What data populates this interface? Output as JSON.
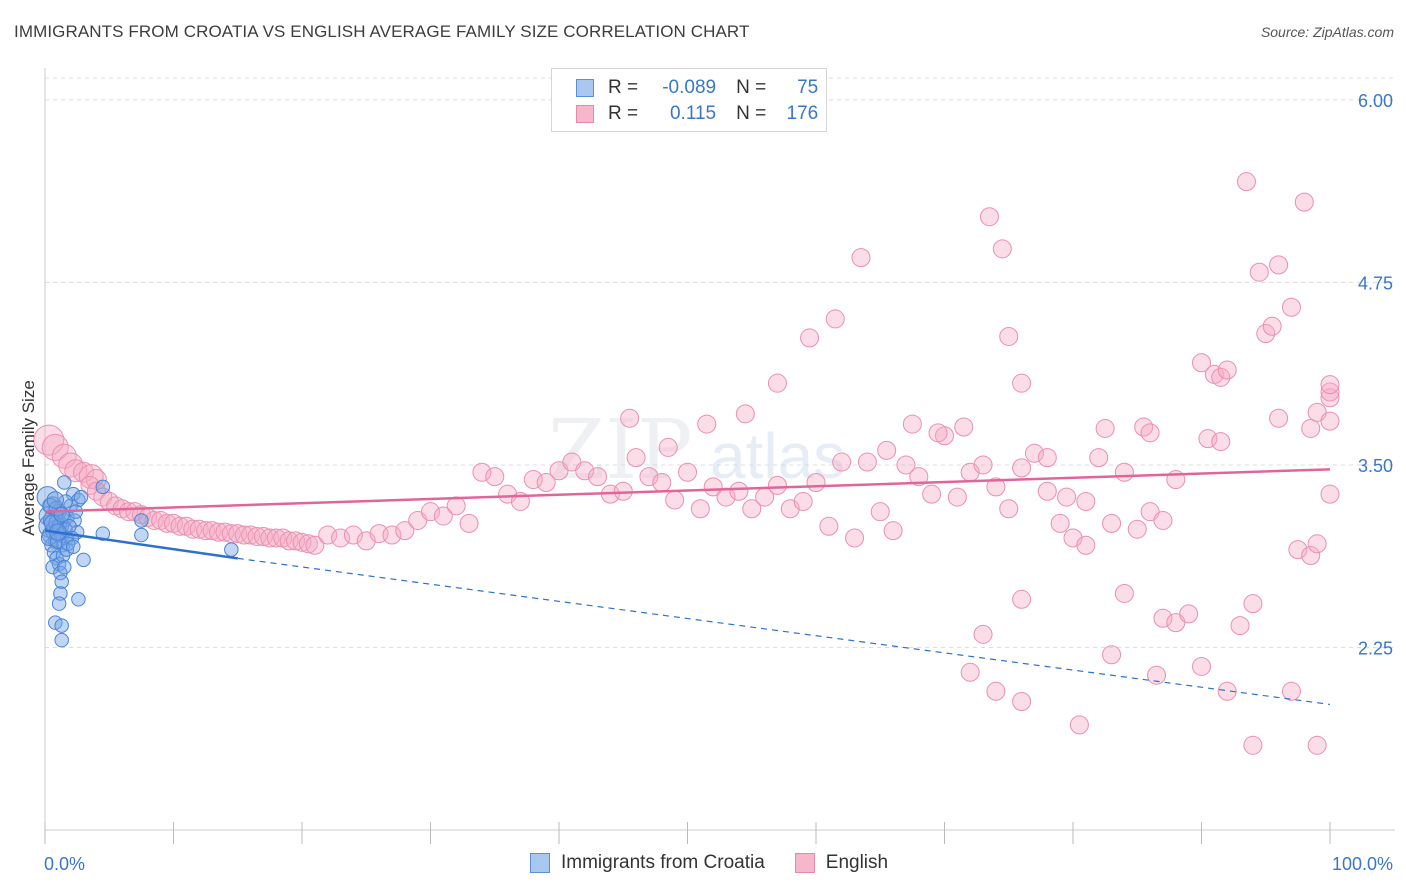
{
  "header": {
    "title": "IMMIGRANTS FROM CROATIA VS ENGLISH AVERAGE FAMILY SIZE CORRELATION CHART",
    "source": "Source: ZipAtlas.com"
  },
  "watermark": {
    "zip": "ZIP",
    "atlas": "atlas"
  },
  "legend": {
    "rows": [
      {
        "r_label": "R =",
        "r_value": "-0.089",
        "n_label": "N =",
        "n_value": "75",
        "color": "#a8c8f0",
        "border": "#5b8fd6"
      },
      {
        "r_label": "R =",
        "r_value": "0.115",
        "n_label": "N =",
        "n_value": "176",
        "color": "#f7b6cb",
        "border": "#e58aa8"
      }
    ]
  },
  "bottom_legend": {
    "items": [
      {
        "label": "Immigrants from Croatia",
        "color": "#a8c8f0",
        "border": "#5b8fd6"
      },
      {
        "label": "English",
        "color": "#f7b6cb",
        "border": "#e58aa8"
      }
    ]
  },
  "colors": {
    "blue_fill": "rgba(118,164,230,0.45)",
    "blue_stroke": "#4a83d4",
    "blue_line": "#2f6fd0",
    "pink_fill": "rgba(246,170,196,0.40)",
    "pink_stroke": "#ea8fb0",
    "pink_line": "#e0669a",
    "axis_label": "#3a76c9"
  },
  "chart_data": {
    "type": "scatter",
    "title": "IMMIGRANTS FROM CROATIA VS ENGLISH AVERAGE FAMILY SIZE CORRELATION CHART",
    "xlabel": "",
    "ylabel": "Average Family Size",
    "xlim": [
      0,
      100
    ],
    "ylim": [
      1.0,
      6.15
    ],
    "y_ticks": [
      2.25,
      3.5,
      4.75,
      6.0
    ],
    "y_tick_labels": [
      "2.25",
      "3.50",
      "4.75",
      "6.00"
    ],
    "x_tick_labels": [
      "0.0%",
      "100.0%"
    ],
    "grid": true,
    "legend_position": "top-center",
    "series": [
      {
        "name": "Immigrants from Croatia",
        "r": -0.089,
        "n": 75,
        "trend": {
          "x0": 0,
          "y0": 3.05,
          "x1": 15,
          "y1": 2.86,
          "x_dash_end": 100,
          "y_dash_end": 1.86
        },
        "points": [
          [
            0.2,
            3.28,
            14
          ],
          [
            0.3,
            3.15,
            13
          ],
          [
            0.4,
            3.08,
            15
          ],
          [
            0.5,
            3.02,
            12
          ],
          [
            0.6,
            3.22,
            12
          ],
          [
            0.7,
            3.12,
            14
          ],
          [
            0.8,
            3.05,
            13
          ],
          [
            0.9,
            2.98,
            11
          ],
          [
            1.0,
            3.1,
            12
          ],
          [
            1.1,
            3.18,
            10
          ],
          [
            1.2,
            3.08,
            11
          ],
          [
            1.3,
            3.02,
            10
          ],
          [
            1.4,
            2.95,
            9
          ],
          [
            1.5,
            3.12,
            9
          ],
          [
            1.6,
            3.06,
            9
          ],
          [
            1.7,
            3.0,
            9
          ],
          [
            1.8,
            3.14,
            8
          ],
          [
            0.5,
            2.95,
            9
          ],
          [
            0.7,
            2.9,
            9
          ],
          [
            0.9,
            2.86,
            9
          ],
          [
            1.1,
            2.82,
            9
          ],
          [
            1.4,
            2.88,
            9
          ],
          [
            1.7,
            2.92,
            9
          ],
          [
            0.6,
            2.8,
            9
          ],
          [
            1.2,
            2.76,
            9
          ],
          [
            1.5,
            2.8,
            9
          ],
          [
            1.3,
            2.7,
            9
          ],
          [
            1.2,
            2.62,
            9
          ],
          [
            1.1,
            2.55,
            9
          ],
          [
            0.8,
            2.42,
            9
          ],
          [
            1.3,
            2.4,
            9
          ],
          [
            1.3,
            2.3,
            9
          ],
          [
            2.6,
            2.58,
            9
          ],
          [
            1.5,
            3.38,
            9
          ],
          [
            2.2,
            3.3,
            9
          ],
          [
            2.6,
            3.26,
            9
          ],
          [
            2.0,
            3.22,
            9
          ],
          [
            2.3,
            3.12,
            9
          ],
          [
            2.5,
            3.04,
            9
          ],
          [
            2.8,
            3.28,
            9
          ],
          [
            3.0,
            2.85,
            9
          ],
          [
            4.5,
            3.35,
            9
          ],
          [
            4.5,
            3.03,
            9
          ],
          [
            7.5,
            3.02,
            9
          ],
          [
            7.5,
            3.12,
            9
          ],
          [
            14.5,
            2.92,
            9
          ],
          [
            0.4,
            3.22,
            10
          ],
          [
            0.9,
            3.2,
            10
          ],
          [
            1.6,
            3.25,
            9
          ],
          [
            1.9,
            3.08,
            9
          ],
          [
            2.1,
            3.0,
            9
          ],
          [
            2.4,
            3.18,
            9
          ],
          [
            0.3,
            3.0,
            10
          ],
          [
            0.6,
            3.1,
            11
          ],
          [
            1.0,
            2.98,
            10
          ],
          [
            1.8,
            2.96,
            9
          ],
          [
            2.2,
            2.94,
            9
          ],
          [
            1.0,
            3.04,
            11
          ],
          [
            0.8,
            3.26,
            11
          ],
          [
            1.3,
            3.16,
            10
          ]
        ]
      },
      {
        "name": "English",
        "r": 0.115,
        "n": 176,
        "trend": {
          "x0": 0,
          "y0": 3.18,
          "x1": 100,
          "y1": 3.47
        },
        "points": [
          [
            0.3,
            3.67,
            15
          ],
          [
            0.8,
            3.62,
            13
          ],
          [
            1.5,
            3.56,
            12
          ],
          [
            2.0,
            3.5,
            12
          ],
          [
            2.4,
            3.46,
            11
          ],
          [
            3.0,
            3.45,
            10
          ],
          [
            3.6,
            3.42,
            12
          ],
          [
            4.0,
            3.4,
            10
          ],
          [
            3.5,
            3.36,
            9
          ],
          [
            4.0,
            3.32,
            9
          ],
          [
            4.5,
            3.28,
            9
          ],
          [
            5.0,
            3.25,
            9
          ],
          [
            5.5,
            3.22,
            9
          ],
          [
            6.0,
            3.2,
            9
          ],
          [
            6.5,
            3.18,
            9
          ],
          [
            7.0,
            3.18,
            9
          ],
          [
            7.5,
            3.16,
            9
          ],
          [
            8.0,
            3.14,
            9
          ],
          [
            8.5,
            3.12,
            9
          ],
          [
            9.0,
            3.12,
            9
          ],
          [
            9.5,
            3.1,
            9
          ],
          [
            10.0,
            3.1,
            9
          ],
          [
            10.5,
            3.08,
            9
          ],
          [
            11.0,
            3.08,
            9
          ],
          [
            11.5,
            3.06,
            9
          ],
          [
            12.0,
            3.06,
            9
          ],
          [
            12.5,
            3.05,
            9
          ],
          [
            13.0,
            3.05,
            9
          ],
          [
            13.5,
            3.04,
            9
          ],
          [
            14.0,
            3.04,
            9
          ],
          [
            14.5,
            3.03,
            9
          ],
          [
            15.0,
            3.03,
            9
          ],
          [
            15.5,
            3.02,
            9
          ],
          [
            16.0,
            3.02,
            9
          ],
          [
            16.5,
            3.01,
            9
          ],
          [
            17.0,
            3.01,
            9
          ],
          [
            17.5,
            3.0,
            9
          ],
          [
            18.0,
            3.0,
            9
          ],
          [
            18.5,
            3.0,
            9
          ],
          [
            19.0,
            2.98,
            9
          ],
          [
            19.5,
            2.98,
            9
          ],
          [
            20.0,
            2.97,
            9
          ],
          [
            20.5,
            2.96,
            9
          ],
          [
            21.0,
            2.95,
            9
          ],
          [
            22.0,
            3.02,
            9
          ],
          [
            23.0,
            3.0,
            9
          ],
          [
            24.0,
            3.02,
            9
          ],
          [
            25.0,
            2.98,
            9
          ],
          [
            26.0,
            3.03,
            9
          ],
          [
            27.0,
            3.02,
            9
          ],
          [
            28.0,
            3.05,
            9
          ],
          [
            29.0,
            3.12,
            9
          ],
          [
            30.0,
            3.18,
            9
          ],
          [
            31.0,
            3.15,
            9
          ],
          [
            32.0,
            3.22,
            9
          ],
          [
            33.0,
            3.1,
            9
          ],
          [
            34.0,
            3.45,
            9
          ],
          [
            35.0,
            3.42,
            9
          ],
          [
            36.0,
            3.3,
            9
          ],
          [
            37.0,
            3.25,
            9
          ],
          [
            38.0,
            3.4,
            9
          ],
          [
            39.0,
            3.38,
            9
          ],
          [
            40.0,
            3.46,
            9
          ],
          [
            41.0,
            3.52,
            9
          ],
          [
            42.0,
            3.46,
            9
          ],
          [
            43.0,
            3.42,
            9
          ],
          [
            44.0,
            3.3,
            9
          ],
          [
            45.0,
            3.32,
            9
          ],
          [
            46.0,
            3.55,
            9
          ],
          [
            47.0,
            3.42,
            9
          ],
          [
            48.0,
            3.38,
            9
          ],
          [
            49.0,
            3.26,
            9
          ],
          [
            50.0,
            3.45,
            9
          ],
          [
            51.0,
            3.2,
            9
          ],
          [
            52.0,
            3.35,
            9
          ],
          [
            53.0,
            3.28,
            9
          ],
          [
            54.0,
            3.32,
            9
          ],
          [
            55.0,
            3.2,
            9
          ],
          [
            56.0,
            3.28,
            9
          ],
          [
            57.0,
            3.36,
            9
          ],
          [
            58.0,
            3.2,
            9
          ],
          [
            59.0,
            3.25,
            9
          ],
          [
            60.0,
            3.38,
            9
          ],
          [
            61.0,
            3.08,
            9
          ],
          [
            62.0,
            3.52,
            9
          ],
          [
            63.0,
            3.0,
            9
          ],
          [
            64.0,
            3.52,
            9
          ],
          [
            65.0,
            3.18,
            9
          ],
          [
            66.0,
            3.05,
            9
          ],
          [
            67.0,
            3.5,
            9
          ],
          [
            68.0,
            3.42,
            9
          ],
          [
            69.0,
            3.3,
            9
          ],
          [
            70.0,
            3.7,
            9
          ],
          [
            71.0,
            3.28,
            9
          ],
          [
            72.0,
            3.45,
            9
          ],
          [
            73.0,
            3.5,
            9
          ],
          [
            74.0,
            3.35,
            9
          ],
          [
            75.0,
            3.2,
            9
          ],
          [
            76.0,
            3.48,
            9
          ],
          [
            77.0,
            3.58,
            9
          ],
          [
            78.0,
            3.32,
            9
          ],
          [
            79.0,
            3.1,
            9
          ],
          [
            80.0,
            3.0,
            9
          ],
          [
            81.0,
            3.25,
            9
          ],
          [
            82.0,
            3.55,
            9
          ],
          [
            83.0,
            3.1,
            9
          ],
          [
            84.0,
            3.45,
            9
          ],
          [
            85.0,
            3.06,
            9
          ],
          [
            86.0,
            3.18,
            9
          ],
          [
            87.0,
            3.12,
            9
          ],
          [
            88.0,
            3.4,
            9
          ],
          [
            45.5,
            3.82,
            9
          ],
          [
            48.5,
            3.62,
            9
          ],
          [
            51.5,
            3.78,
            9
          ],
          [
            54.5,
            3.85,
            9
          ],
          [
            57.0,
            4.06,
            9
          ],
          [
            59.5,
            4.37,
            9
          ],
          [
            61.5,
            4.5,
            9
          ],
          [
            63.5,
            4.92,
            9
          ],
          [
            65.5,
            3.6,
            9
          ],
          [
            67.5,
            3.78,
            9
          ],
          [
            69.5,
            3.72,
            9
          ],
          [
            71.5,
            3.76,
            9
          ],
          [
            73.5,
            5.2,
            9
          ],
          [
            74.5,
            4.98,
            9
          ],
          [
            75.0,
            4.38,
            9
          ],
          [
            76.0,
            4.06,
            9
          ],
          [
            78.0,
            3.55,
            9
          ],
          [
            79.5,
            3.28,
            9
          ],
          [
            81.0,
            2.95,
            9
          ],
          [
            82.5,
            3.75,
            9
          ],
          [
            84.0,
            2.62,
            9
          ],
          [
            85.5,
            3.76,
            9
          ],
          [
            86.0,
            3.72,
            9
          ],
          [
            87.0,
            2.45,
            9
          ],
          [
            88.0,
            2.42,
            9
          ],
          [
            89.0,
            2.48,
            9
          ],
          [
            90.0,
            4.2,
            9
          ],
          [
            91.0,
            4.12,
            9
          ],
          [
            91.5,
            4.1,
            9
          ],
          [
            92.0,
            4.15,
            9
          ],
          [
            93.5,
            5.44,
            9
          ],
          [
            94.5,
            4.82,
            9
          ],
          [
            96.0,
            4.87,
            9
          ],
          [
            97.0,
            4.58,
            9
          ],
          [
            98.0,
            5.3,
            9
          ],
          [
            98.5,
            3.75,
            9
          ],
          [
            99.0,
            3.86,
            9
          ],
          [
            100.0,
            3.96,
            9
          ],
          [
            100.5,
            3.8,
            9
          ],
          [
            100.0,
            4.0,
            9
          ],
          [
            90.5,
            3.68,
            9
          ],
          [
            91.5,
            3.66,
            9
          ],
          [
            93.0,
            2.4,
            9
          ],
          [
            94.0,
            2.55,
            9
          ],
          [
            96.0,
            3.82,
            9
          ],
          [
            97.5,
            2.92,
            9
          ],
          [
            98.5,
            2.88,
            9
          ],
          [
            99.0,
            2.96,
            9
          ],
          [
            100.0,
            3.3,
            9
          ],
          [
            76.0,
            2.58,
            9
          ],
          [
            73.0,
            2.34,
            9
          ],
          [
            72.0,
            2.08,
            9
          ],
          [
            74.0,
            1.95,
            9
          ],
          [
            76.0,
            1.88,
            9
          ],
          [
            80.5,
            1.72,
            9
          ],
          [
            83.0,
            2.2,
            9
          ],
          [
            86.5,
            2.06,
            9
          ],
          [
            90.0,
            2.12,
            9
          ],
          [
            92.0,
            1.95,
            9
          ],
          [
            94.0,
            1.58,
            9
          ],
          [
            97.0,
            1.95,
            9
          ],
          [
            99.0,
            1.58,
            9
          ],
          [
            95.0,
            4.4,
            9
          ],
          [
            95.5,
            4.45,
            9
          ],
          [
            100.0,
            4.05,
            9
          ]
        ]
      }
    ]
  }
}
